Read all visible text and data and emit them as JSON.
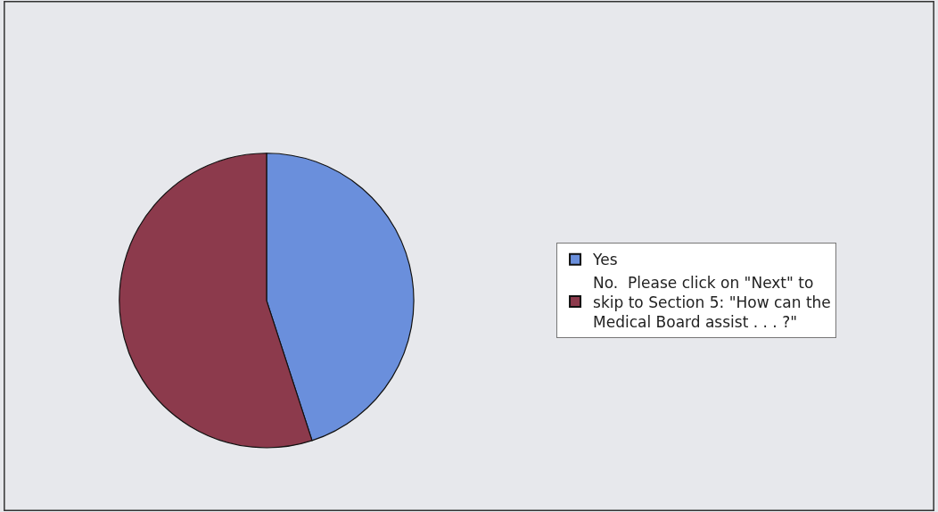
{
  "chart_data": {
    "type": "pie",
    "categories": [
      "Yes",
      "No.  Please click on \"Next\" to skip to Section 5: \"How can the Medical Board assist . . . ?\""
    ],
    "values": [
      45,
      55
    ],
    "colors": [
      "#6a8fdc",
      "#8c3a4c"
    ],
    "legend": "right"
  }
}
